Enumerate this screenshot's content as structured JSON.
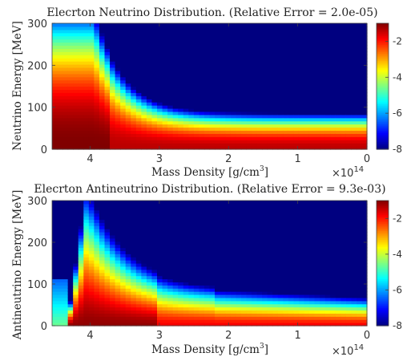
{
  "chart_data": [
    {
      "type": "heatmap",
      "title": "Elecrton Neutrino Distribution. (Relative Error = 2.0e-05)",
      "xlabel": "Mass Density [g/cm$^3$]",
      "xlabel_main": "Mass Density [g/cm",
      "xlabel_sup": "3",
      "xlabel_end": "]",
      "ylabel": "Neutrino Energy [MeV]",
      "x_multiplier": "×10",
      "x_multiplier_exp": "14",
      "xlim": [
        4.55,
        0
      ],
      "ylim": [
        0,
        300
      ],
      "xticks": [
        4,
        3,
        2,
        1,
        0
      ],
      "yticks": [
        0,
        100,
        200,
        300
      ],
      "colorbar": {
        "clim": [
          -8,
          -1
        ],
        "ticks": [
          -2,
          -4,
          -6,
          -8
        ],
        "colormap": "jet"
      },
      "species": "neutrino"
    },
    {
      "type": "heatmap",
      "title": "Elecrton Antineutrino Distribution. (Relative Error = 9.3e-03)",
      "xlabel": "Mass Density [g/cm$^3$]",
      "xlabel_main": "Mass Density [g/cm",
      "xlabel_sup": "3",
      "xlabel_end": "]",
      "ylabel": "Antineutrino Energy [MeV]",
      "x_multiplier": "×10",
      "x_multiplier_exp": "14",
      "xlim": [
        4.55,
        0
      ],
      "ylim": [
        0,
        300
      ],
      "xticks": [
        4,
        3,
        2,
        1,
        0
      ],
      "yticks": [
        0,
        100,
        200,
        300
      ],
      "colorbar": {
        "clim": [
          -8,
          -1
        ],
        "ticks": [
          -2,
          -4,
          -6,
          -8
        ],
        "colormap": "jet"
      },
      "species": "antineutrino"
    }
  ]
}
